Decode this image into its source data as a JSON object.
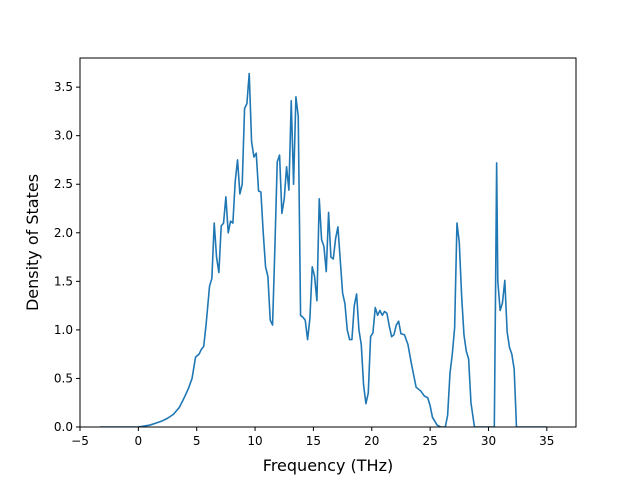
{
  "chart_data": {
    "type": "line",
    "title": "",
    "xlabel": "Frequency (THz)",
    "ylabel": "Density of States",
    "xlim": [
      -5,
      37.5
    ],
    "ylim": [
      0,
      3.8
    ],
    "xticks": [
      -5,
      0,
      5,
      10,
      15,
      20,
      25,
      30,
      35
    ],
    "xtick_labels": [
      "−5",
      "0",
      "5",
      "10",
      "15",
      "20",
      "25",
      "30",
      "35"
    ],
    "yticks": [
      0,
      0.5,
      1.0,
      1.5,
      2.0,
      2.5,
      3.0,
      3.5
    ],
    "ytick_labels": [
      "0.0",
      "0.5",
      "1.0",
      "1.5",
      "2.0",
      "2.5",
      "3.0",
      "3.5"
    ],
    "grid": false,
    "legend": false,
    "line_color": "#1f77b4",
    "series": [
      {
        "x": [
          -3.3,
          -1.5,
          0.0,
          0.5,
          1.0,
          1.5,
          2.0,
          2.5,
          3.0,
          3.5,
          3.8,
          4.0,
          4.3,
          4.6,
          4.9,
          5.2,
          5.4,
          5.6,
          5.8,
          6.1,
          6.3,
          6.5,
          6.7,
          6.9,
          7.1,
          7.3,
          7.5,
          7.7,
          7.9,
          8.1,
          8.3,
          8.5,
          8.7,
          8.9,
          9.1,
          9.3,
          9.5,
          9.7,
          9.9,
          10.1,
          10.3,
          10.5,
          10.7,
          10.9,
          11.1,
          11.3,
          11.5,
          11.7,
          11.9,
          12.1,
          12.3,
          12.5,
          12.7,
          12.9,
          13.1,
          13.3,
          13.5,
          13.7,
          13.9,
          14.1,
          14.3,
          14.5,
          14.7,
          14.9,
          15.1,
          15.3,
          15.5,
          15.7,
          15.9,
          16.1,
          16.3,
          16.5,
          16.7,
          16.9,
          17.1,
          17.3,
          17.5,
          17.7,
          17.9,
          18.1,
          18.3,
          18.5,
          18.7,
          18.9,
          19.1,
          19.3,
          19.5,
          19.7,
          19.9,
          20.1,
          20.3,
          20.5,
          20.7,
          20.9,
          21.1,
          21.3,
          21.5,
          21.7,
          21.9,
          22.1,
          22.3,
          22.5,
          22.8,
          23.1,
          23.4,
          23.8,
          24.2,
          24.5,
          24.8,
          25.0,
          25.2,
          25.6,
          25.9,
          26.1,
          26.3,
          26.5,
          26.7,
          26.9,
          27.1,
          27.3,
          27.5,
          27.7,
          27.9,
          28.1,
          28.3,
          28.5,
          28.8,
          29.2,
          29.6,
          30.0,
          30.4,
          30.5,
          30.6,
          30.7,
          30.8,
          31.0,
          31.2,
          31.4,
          31.6,
          31.8,
          32.0,
          32.2,
          32.4,
          32.8,
          35.0
        ],
        "y": [
          0.0,
          0.0,
          0.0,
          0.01,
          0.02,
          0.04,
          0.06,
          0.09,
          0.13,
          0.2,
          0.27,
          0.32,
          0.4,
          0.5,
          0.72,
          0.75,
          0.8,
          0.83,
          1.05,
          1.45,
          1.53,
          2.1,
          1.75,
          1.59,
          2.07,
          2.1,
          2.37,
          2.0,
          2.12,
          2.1,
          2.53,
          2.75,
          2.4,
          2.5,
          3.28,
          3.33,
          3.64,
          2.94,
          2.78,
          2.82,
          2.43,
          2.42,
          2.0,
          1.65,
          1.55,
          1.1,
          1.05,
          1.85,
          2.73,
          2.8,
          2.2,
          2.35,
          2.68,
          2.44,
          3.36,
          2.5,
          3.4,
          3.2,
          1.15,
          1.13,
          1.1,
          0.9,
          1.12,
          1.65,
          1.55,
          1.3,
          2.35,
          1.93,
          1.86,
          1.6,
          2.21,
          1.75,
          1.73,
          1.94,
          2.06,
          1.72,
          1.38,
          1.27,
          1.0,
          0.9,
          0.9,
          1.25,
          1.37,
          1.0,
          0.85,
          0.43,
          0.24,
          0.35,
          0.93,
          0.97,
          1.23,
          1.15,
          1.2,
          1.15,
          1.19,
          1.17,
          1.04,
          0.93,
          0.95,
          1.05,
          1.09,
          0.96,
          0.95,
          0.85,
          0.65,
          0.41,
          0.37,
          0.32,
          0.3,
          0.22,
          0.1,
          0.02,
          0.0,
          0.0,
          0.0,
          0.12,
          0.55,
          0.75,
          1.02,
          2.1,
          1.9,
          1.35,
          0.95,
          0.78,
          0.7,
          0.25,
          0.0,
          0.0,
          0.0,
          0.0,
          0.0,
          0.0,
          1.3,
          2.72,
          1.5,
          1.2,
          1.28,
          1.51,
          0.98,
          0.82,
          0.75,
          0.6,
          0.0,
          0.0,
          0.0
        ]
      }
    ]
  }
}
